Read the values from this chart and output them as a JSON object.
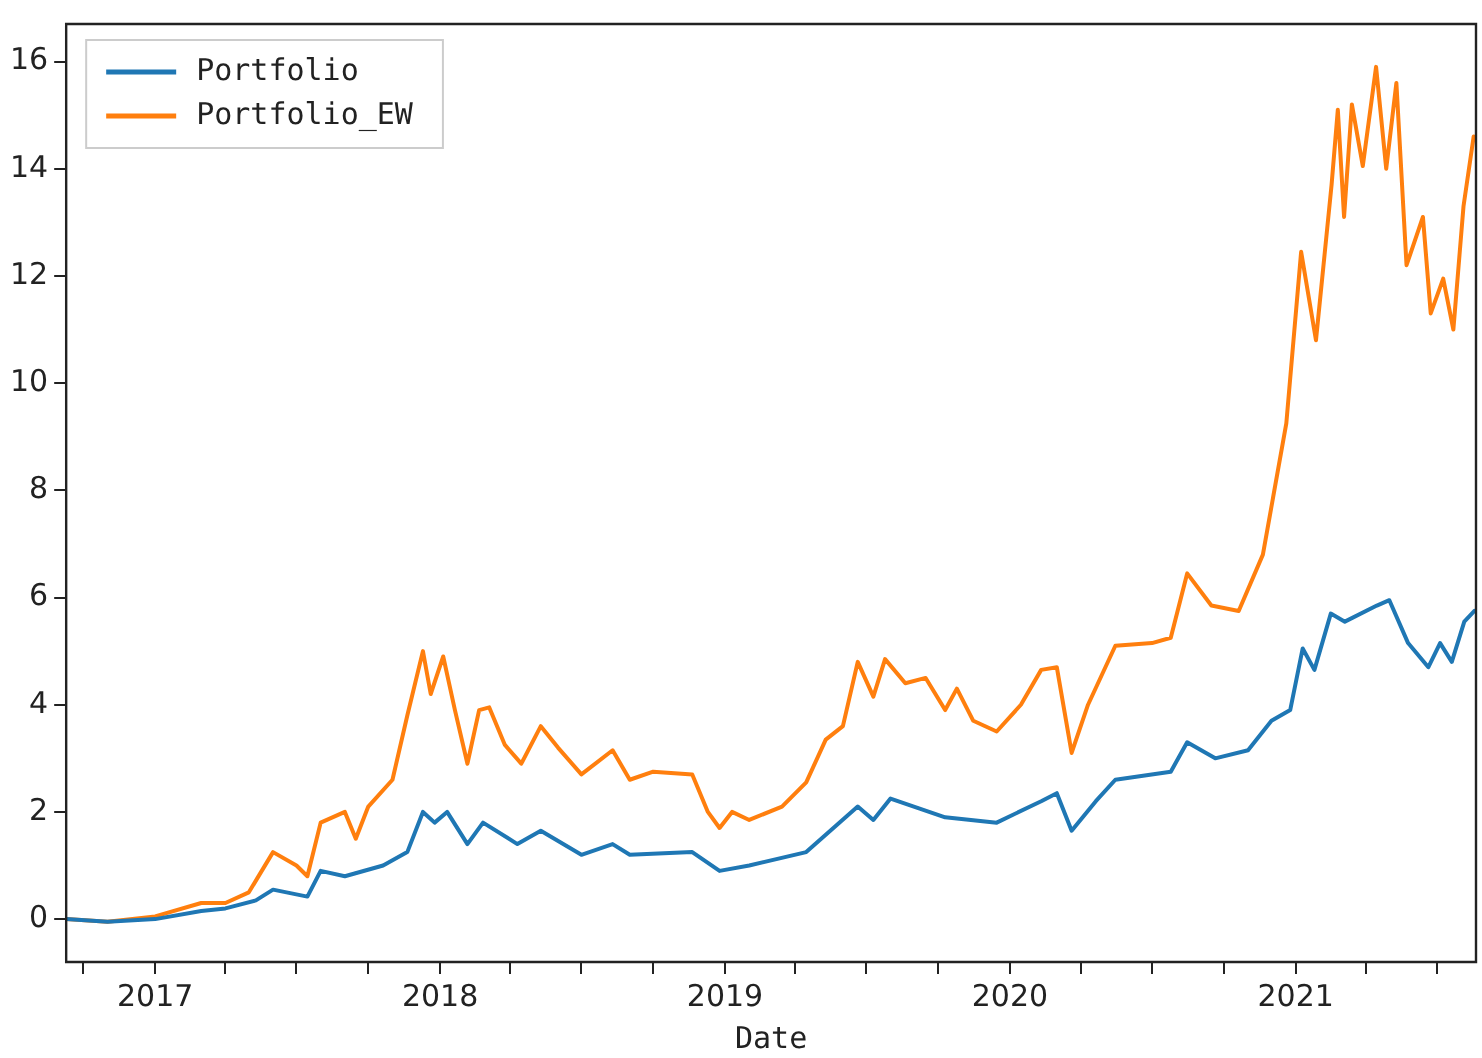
{
  "chart_data": {
    "type": "line",
    "xlabel": "Date",
    "legend": "top left",
    "grid": false,
    "marker": "none",
    "line_style": "solid",
    "xlim": [
      "2016-09-09",
      "2021-08-20"
    ],
    "xticks": [
      {
        "value": "2016-10-01",
        "label": null
      },
      {
        "value": "2017-01-01",
        "label": "2017"
      },
      {
        "value": "2017-04-01",
        "label": null
      },
      {
        "value": "2017-07-01",
        "label": null
      },
      {
        "value": "2017-10-01",
        "label": null
      },
      {
        "value": "2018-01-01",
        "label": "2018"
      },
      {
        "value": "2018-04-01",
        "label": null
      },
      {
        "value": "2018-07-01",
        "label": null
      },
      {
        "value": "2018-10-01",
        "label": null
      },
      {
        "value": "2019-01-01",
        "label": "2019"
      },
      {
        "value": "2019-04-01",
        "label": null
      },
      {
        "value": "2019-07-01",
        "label": null
      },
      {
        "value": "2019-10-01",
        "label": null
      },
      {
        "value": "2020-01-01",
        "label": "2020"
      },
      {
        "value": "2020-04-01",
        "label": null
      },
      {
        "value": "2020-07-01",
        "label": null
      },
      {
        "value": "2020-10-01",
        "label": null
      },
      {
        "value": "2021-01-01",
        "label": "2021"
      },
      {
        "value": "2021-04-01",
        "label": null
      },
      {
        "value": "2021-07-01",
        "label": null
      }
    ],
    "ylim": [
      -0.8,
      16.7
    ],
    "yticks": [
      0,
      2,
      4,
      6,
      8,
      10,
      12,
      14,
      16
    ],
    "series": [
      {
        "name": "Portfolio",
        "color": "#1f77b4",
        "x": [
          "2016-09-09",
          "2016-11-01",
          "2017-01-01",
          "2017-03-01",
          "2017-04-01",
          "2017-05-10",
          "2017-06-01",
          "2017-07-15",
          "2017-08-01",
          "2017-09-01",
          "2017-10-20",
          "2017-11-20",
          "2017-12-10",
          "2017-12-25",
          "2018-01-10",
          "2018-02-05",
          "2018-02-25",
          "2018-04-10",
          "2018-05-10",
          "2018-07-01",
          "2018-08-10",
          "2018-09-01",
          "2018-11-20",
          "2018-12-25",
          "2019-02-01",
          "2019-04-15",
          "2019-06-20",
          "2019-07-10",
          "2019-08-01",
          "2019-10-10",
          "2019-12-15",
          "2020-02-10",
          "2020-03-01",
          "2020-03-20",
          "2020-04-20",
          "2020-05-15",
          "2020-07-25",
          "2020-08-15",
          "2020-09-20",
          "2020-11-01",
          "2020-12-01",
          "2020-12-25",
          "2021-01-10",
          "2021-01-25",
          "2021-02-15",
          "2021-03-05",
          "2021-04-15",
          "2021-05-01",
          "2021-05-25",
          "2021-06-20",
          "2021-07-05",
          "2021-07-20",
          "2021-08-05",
          "2021-08-18"
        ],
        "values": [
          0,
          -0.05,
          0,
          0.15,
          0.2,
          0.35,
          0.55,
          0.42,
          0.9,
          0.8,
          1.0,
          1.25,
          2.0,
          1.8,
          2.0,
          1.4,
          1.8,
          1.4,
          1.65,
          1.2,
          1.4,
          1.2,
          1.25,
          0.9,
          1.0,
          1.25,
          2.1,
          1.85,
          2.25,
          1.9,
          1.8,
          2.2,
          2.35,
          1.65,
          2.2,
          2.6,
          2.75,
          3.3,
          3.0,
          3.15,
          3.7,
          3.9,
          5.05,
          4.65,
          5.7,
          5.55,
          5.85,
          5.95,
          5.15,
          4.7,
          5.15,
          4.8,
          5.55,
          5.75
        ]
      },
      {
        "name": "Portfolio_EW",
        "color": "#ff7f0e",
        "x": [
          "2016-09-09",
          "2016-11-01",
          "2017-01-01",
          "2017-03-01",
          "2017-04-01",
          "2017-05-01",
          "2017-06-01",
          "2017-07-01",
          "2017-07-15",
          "2017-08-01",
          "2017-09-01",
          "2017-09-15",
          "2017-10-01",
          "2017-11-01",
          "2017-11-20",
          "2017-12-10",
          "2017-12-20",
          "2018-01-05",
          "2018-01-20",
          "2018-02-05",
          "2018-02-20",
          "2018-03-05",
          "2018-03-25",
          "2018-04-15",
          "2018-05-10",
          "2018-06-01",
          "2018-07-01",
          "2018-08-10",
          "2018-09-01",
          "2018-10-01",
          "2018-11-20",
          "2018-12-10",
          "2018-12-25",
          "2019-01-10",
          "2019-02-01",
          "2019-03-15",
          "2019-04-15",
          "2019-05-10",
          "2019-06-01",
          "2019-06-20",
          "2019-07-10",
          "2019-07-25",
          "2019-08-20",
          "2019-09-15",
          "2019-10-10",
          "2019-10-25",
          "2019-11-15",
          "2019-12-15",
          "2020-01-15",
          "2020-02-10",
          "2020-03-01",
          "2020-03-20",
          "2020-04-10",
          "2020-05-15",
          "2020-07-01",
          "2020-07-25",
          "2020-08-15",
          "2020-09-15",
          "2020-10-20",
          "2020-11-20",
          "2020-12-20",
          "2021-01-08",
          "2021-01-27",
          "2021-02-16",
          "2021-02-24",
          "2021-03-04",
          "2021-03-14",
          "2021-03-28",
          "2021-04-14",
          "2021-04-27",
          "2021-05-10",
          "2021-05-23",
          "2021-06-13",
          "2021-06-23",
          "2021-07-09",
          "2021-07-22",
          "2021-08-04",
          "2021-08-17"
        ],
        "values": [
          0,
          -0.05,
          0.05,
          0.3,
          0.3,
          0.5,
          1.25,
          1.0,
          0.8,
          1.8,
          2.0,
          1.5,
          2.1,
          2.6,
          3.8,
          5.0,
          4.2,
          4.9,
          3.9,
          2.9,
          3.9,
          3.95,
          3.25,
          2.9,
          3.6,
          3.2,
          2.7,
          3.15,
          2.6,
          2.75,
          2.7,
          2.0,
          1.7,
          2.0,
          1.85,
          2.1,
          2.55,
          3.35,
          3.6,
          4.8,
          4.15,
          4.85,
          4.4,
          4.5,
          3.9,
          4.3,
          3.7,
          3.5,
          4.0,
          4.65,
          4.7,
          3.1,
          4.0,
          5.1,
          5.15,
          5.25,
          6.45,
          5.85,
          5.75,
          6.8,
          9.25,
          12.45,
          10.8,
          13.7,
          15.1,
          13.1,
          15.2,
          14.05,
          15.9,
          14.0,
          15.6,
          12.2,
          13.1,
          11.3,
          11.95,
          11.0,
          13.3,
          14.6
        ]
      }
    ]
  }
}
